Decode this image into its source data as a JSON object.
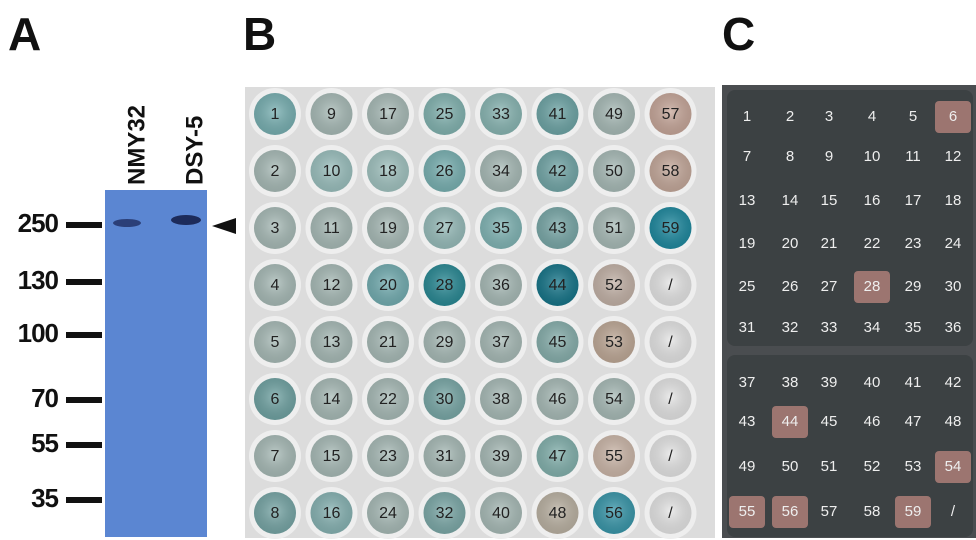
{
  "panels": {
    "a": {
      "label": "A",
      "lanes": [
        "NMY32",
        "DSY-5"
      ],
      "markers": [
        "250",
        "130",
        "100",
        "70",
        "55",
        "35"
      ]
    },
    "b": {
      "label": "B",
      "rows": [
        [
          "1",
          "9",
          "17",
          "25",
          "33",
          "41",
          "49",
          "57"
        ],
        [
          "2",
          "10",
          "18",
          "26",
          "34",
          "42",
          "50",
          "58"
        ],
        [
          "3",
          "11",
          "19",
          "27",
          "35",
          "43",
          "51",
          "59"
        ],
        [
          "4",
          "12",
          "20",
          "28",
          "36",
          "44",
          "52",
          "/"
        ],
        [
          "5",
          "13",
          "21",
          "29",
          "37",
          "45",
          "53",
          "/"
        ],
        [
          "6",
          "14",
          "22",
          "30",
          "38",
          "46",
          "54",
          "/"
        ],
        [
          "7",
          "15",
          "23",
          "31",
          "39",
          "47",
          "55",
          "/"
        ],
        [
          "8",
          "16",
          "24",
          "32",
          "40",
          "48",
          "56",
          "/"
        ]
      ]
    },
    "c": {
      "label": "C",
      "upper": [
        [
          "1",
          "2",
          "3",
          "4",
          "5",
          "6"
        ],
        [
          "7",
          "8",
          "9",
          "10",
          "11",
          "12"
        ],
        [
          "13",
          "14",
          "15",
          "16",
          "17",
          "18"
        ],
        [
          "19",
          "20",
          "21",
          "22",
          "23",
          "24"
        ],
        [
          "25",
          "26",
          "27",
          "28",
          "29",
          "30"
        ],
        [
          "31",
          "32",
          "33",
          "34",
          "35",
          "36"
        ]
      ],
      "lower": [
        [
          "37",
          "38",
          "39",
          "40",
          "41",
          "42"
        ],
        [
          "43",
          "44",
          "45",
          "46",
          "47",
          "48"
        ],
        [
          "49",
          "50",
          "51",
          "52",
          "53",
          "54"
        ],
        [
          "55",
          "56",
          "57",
          "58",
          "59",
          "/"
        ]
      ]
    }
  }
}
